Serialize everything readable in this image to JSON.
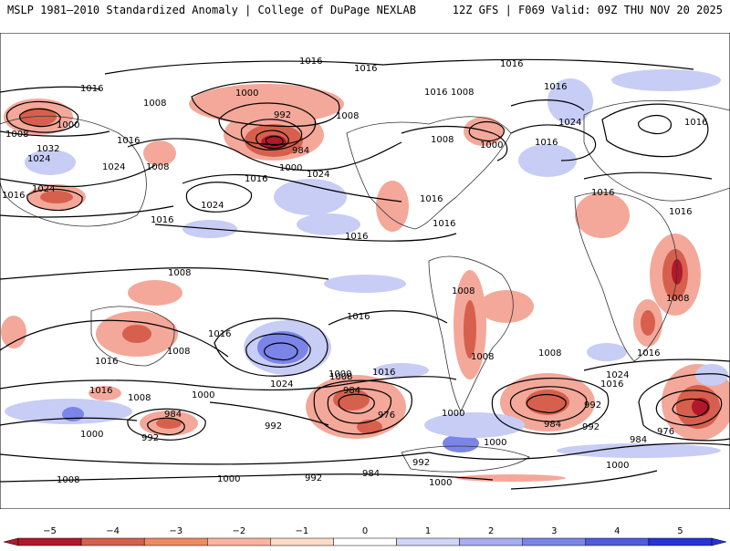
{
  "header": {
    "left_title": "MSLP 1981–2010 Standardized Anomaly | College of DuPage NEXLAB",
    "right_title": "12Z GFS | F069 Valid: 09Z THU NOV 20 2025"
  },
  "isobar_labels": [
    {
      "id": "l1016-a",
      "text": "1016"
    },
    {
      "id": "l1016-b",
      "text": "1016"
    },
    {
      "id": "l1016-c",
      "text": "1016"
    },
    {
      "id": "l1016-d",
      "text": "1016"
    },
    {
      "id": "l1016-e",
      "text": "1016"
    },
    {
      "id": "l1016-f",
      "text": "1016"
    },
    {
      "id": "l1016-g",
      "text": "1016"
    },
    {
      "id": "l1016-h",
      "text": "1016"
    },
    {
      "id": "l1016-i",
      "text": "1016"
    },
    {
      "id": "l1016-j",
      "text": "1016"
    },
    {
      "id": "l1016-k",
      "text": "1016"
    },
    {
      "id": "l1016-l",
      "text": "1016"
    },
    {
      "id": "l1016-m",
      "text": "1016"
    },
    {
      "id": "l1016-n",
      "text": "1016"
    },
    {
      "id": "l1016-o",
      "text": "1016"
    },
    {
      "id": "l1016-p",
      "text": "1016"
    },
    {
      "id": "l1016-q",
      "text": "1016"
    },
    {
      "id": "l1016-r",
      "text": "1016"
    },
    {
      "id": "l1016-s",
      "text": "1016"
    },
    {
      "id": "l1016-t",
      "text": "1016"
    },
    {
      "id": "l1016-u",
      "text": "1016"
    },
    {
      "id": "l1016-v",
      "text": "1016"
    },
    {
      "id": "l1016-w",
      "text": "1016"
    },
    {
      "id": "l1016-x",
      "text": "1016"
    },
    {
      "id": "l1000-a",
      "text": "1000"
    },
    {
      "id": "l1000-b",
      "text": "1000"
    },
    {
      "id": "l1000-c",
      "text": "1000"
    },
    {
      "id": "l1000-d",
      "text": "1000"
    },
    {
      "id": "l1000-e",
      "text": "1000"
    },
    {
      "id": "l1000-f",
      "text": "1000"
    },
    {
      "id": "l1000-g",
      "text": "1000"
    },
    {
      "id": "l1000-h",
      "text": "1000"
    },
    {
      "id": "l1000-i",
      "text": "1000"
    },
    {
      "id": "l1000-j",
      "text": "1000"
    },
    {
      "id": "l1000-k",
      "text": "1000"
    },
    {
      "id": "l1000-l",
      "text": "1000"
    },
    {
      "id": "l1008-a",
      "text": "1008"
    },
    {
      "id": "l1008-b",
      "text": "1008"
    },
    {
      "id": "l1008-c",
      "text": "1008"
    },
    {
      "id": "l1008-d",
      "text": "1008"
    },
    {
      "id": "l1008-e",
      "text": "1008"
    },
    {
      "id": "l1008-f",
      "text": "1008"
    },
    {
      "id": "l1008-g",
      "text": "1008"
    },
    {
      "id": "l1008-h",
      "text": "1008"
    },
    {
      "id": "l1008-i",
      "text": "1008"
    },
    {
      "id": "l1008-j",
      "text": "1008"
    },
    {
      "id": "l1008-k",
      "text": "1008"
    },
    {
      "id": "l1008-l",
      "text": "1008"
    },
    {
      "id": "l1008-m",
      "text": "1008"
    },
    {
      "id": "l1008-n",
      "text": "1008"
    },
    {
      "id": "l1008-o",
      "text": "1008"
    },
    {
      "id": "l1024-a",
      "text": "1024"
    },
    {
      "id": "l1024-b",
      "text": "1024"
    },
    {
      "id": "l1024-c",
      "text": "1024"
    },
    {
      "id": "l1024-d",
      "text": "1024"
    },
    {
      "id": "l1024-e",
      "text": "1024"
    },
    {
      "id": "l1024-f",
      "text": "1024"
    },
    {
      "id": "l1024-g",
      "text": "1024"
    },
    {
      "id": "l1024-h",
      "text": "1024"
    },
    {
      "id": "l1032",
      "text": "1032"
    },
    {
      "id": "l992-a",
      "text": "992"
    },
    {
      "id": "l992-b",
      "text": "992"
    },
    {
      "id": "l992-c",
      "text": "992"
    },
    {
      "id": "l992-d",
      "text": "992"
    },
    {
      "id": "l992-e",
      "text": "992"
    },
    {
      "id": "l992-f",
      "text": "992"
    },
    {
      "id": "l992-g",
      "text": "992"
    },
    {
      "id": "l984-a",
      "text": "984"
    },
    {
      "id": "l984-b",
      "text": "984"
    },
    {
      "id": "l984-c",
      "text": "984"
    },
    {
      "id": "l984-d",
      "text": "984"
    },
    {
      "id": "l984-e",
      "text": "984"
    },
    {
      "id": "l984-f",
      "text": "984"
    },
    {
      "id": "l976-a",
      "text": "976"
    },
    {
      "id": "l976-b",
      "text": "976"
    }
  ],
  "colorbar": {
    "ticks": [
      "−5",
      "−4",
      "−3",
      "−2",
      "−1",
      "0",
      "1",
      "2",
      "3",
      "4",
      "5"
    ],
    "colors": [
      "#b2182b",
      "#d6604d",
      "#ef8a62",
      "#fbb4a0",
      "#fddbc7",
      "#ffffff",
      "#d1d5f7",
      "#a6adf0",
      "#7b84e8",
      "#4f5be0",
      "#2533d8"
    ]
  }
}
